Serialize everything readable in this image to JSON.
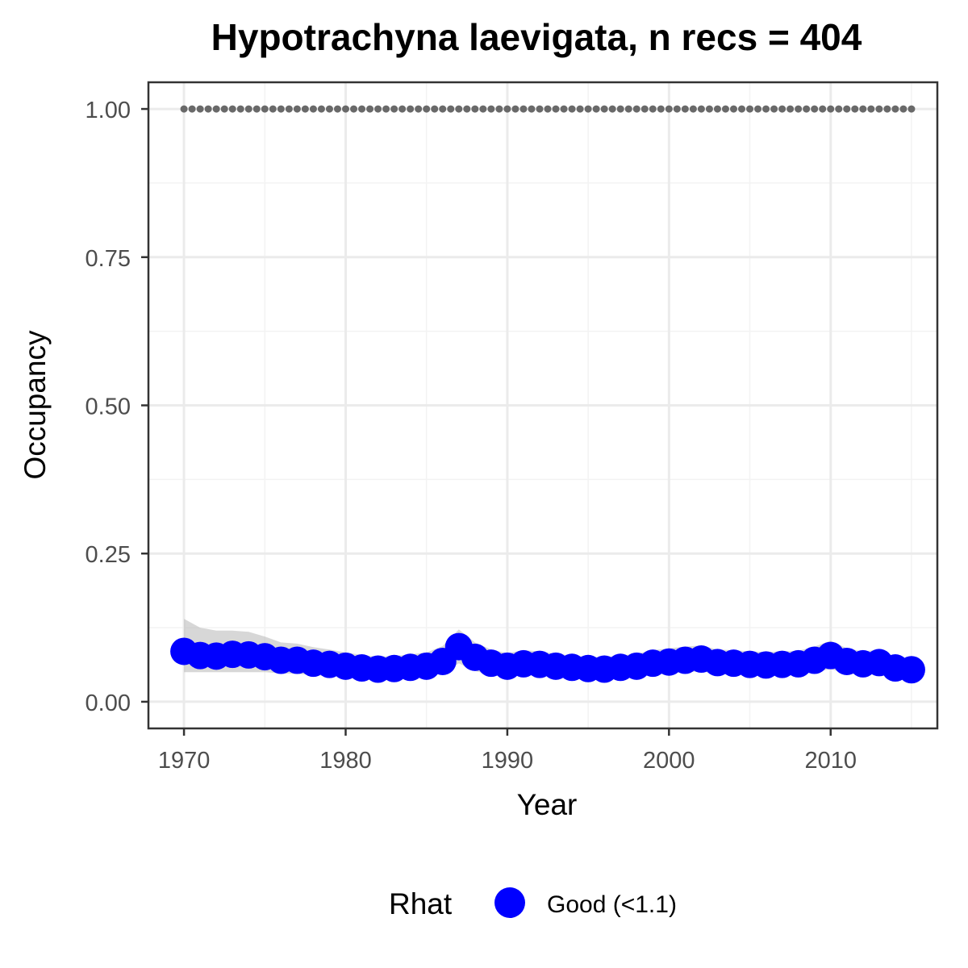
{
  "chart_data": {
    "type": "line",
    "title": "Hypotrachyna laevigata, n recs = 404",
    "xlabel": "Year",
    "ylabel": "Occupancy",
    "xlim": [
      1967.8,
      2016.6
    ],
    "ylim": [
      -0.045,
      1.045
    ],
    "x_ticks": [
      1970,
      1980,
      1990,
      2000,
      2010
    ],
    "x_tick_labels": [
      "1970",
      "1980",
      "1990",
      "2000",
      "2010"
    ],
    "x_minor_ticks": [
      1975,
      1985,
      1995,
      2005,
      2015
    ],
    "y_ticks": [
      0,
      0.25,
      0.5,
      0.75,
      1
    ],
    "y_tick_labels": [
      "0.00",
      "0.25",
      "0.50",
      "0.75",
      "1.00"
    ],
    "y_minor_ticks": [
      0.125,
      0.375,
      0.625,
      0.875
    ],
    "grid": true,
    "x": [
      1970,
      1971,
      1972,
      1973,
      1974,
      1975,
      1976,
      1977,
      1978,
      1979,
      1980,
      1981,
      1982,
      1983,
      1984,
      1985,
      1986,
      1987,
      1988,
      1989,
      1990,
      1991,
      1992,
      1993,
      1994,
      1995,
      1996,
      1997,
      1998,
      1999,
      2000,
      2001,
      2002,
      2003,
      2004,
      2005,
      2006,
      2007,
      2008,
      2009,
      2010,
      2011,
      2012,
      2013,
      2014,
      2015
    ],
    "series": [
      {
        "values": [
          0.085,
          0.078,
          0.077,
          0.08,
          0.079,
          0.076,
          0.07,
          0.07,
          0.065,
          0.063,
          0.06,
          0.057,
          0.055,
          0.056,
          0.058,
          0.06,
          0.068,
          0.093,
          0.075,
          0.065,
          0.06,
          0.064,
          0.063,
          0.06,
          0.058,
          0.056,
          0.055,
          0.058,
          0.06,
          0.065,
          0.067,
          0.07,
          0.072,
          0.066,
          0.065,
          0.063,
          0.062,
          0.063,
          0.064,
          0.07,
          0.078,
          0.068,
          0.064,
          0.066,
          0.057,
          0.054
        ],
        "lower": [
          0.05,
          0.05,
          0.05,
          0.05,
          0.05,
          0.05,
          0.048,
          0.047,
          0.045,
          0.043,
          0.042,
          0.04,
          0.039,
          0.04,
          0.041,
          0.043,
          0.048,
          0.065,
          0.052,
          0.045,
          0.043,
          0.045,
          0.044,
          0.042,
          0.041,
          0.04,
          0.04,
          0.042,
          0.043,
          0.046,
          0.048,
          0.05,
          0.051,
          0.047,
          0.046,
          0.045,
          0.045,
          0.045,
          0.046,
          0.05,
          0.055,
          0.048,
          0.046,
          0.047,
          0.041,
          0.039
        ],
        "upper": [
          0.14,
          0.125,
          0.12,
          0.12,
          0.118,
          0.11,
          0.1,
          0.098,
          0.092,
          0.088,
          0.083,
          0.079,
          0.076,
          0.077,
          0.08,
          0.083,
          0.094,
          0.122,
          0.1,
          0.088,
          0.082,
          0.087,
          0.085,
          0.081,
          0.078,
          0.076,
          0.075,
          0.078,
          0.081,
          0.087,
          0.09,
          0.093,
          0.095,
          0.088,
          0.087,
          0.085,
          0.084,
          0.085,
          0.086,
          0.093,
          0.103,
          0.09,
          0.085,
          0.088,
          0.076,
          0.072
        ],
        "color": "#0000ff"
      },
      {
        "values": [
          1,
          1,
          1,
          1,
          1,
          1,
          1,
          1,
          1,
          1,
          1,
          1,
          1,
          1,
          1,
          1,
          1,
          1,
          1,
          1,
          1,
          1,
          1,
          1,
          1,
          1,
          1,
          1,
          1,
          1,
          1,
          1,
          1,
          1,
          1,
          1,
          1,
          1,
          1,
          1,
          1,
          1,
          1,
          1,
          1,
          1
        ],
        "color": "#696969",
        "style": "dotted"
      }
    ],
    "ribbon_color": "#bdbdbd",
    "legend": {
      "title": "Rhat",
      "entries": [
        {
          "label": "Good (<1.1)",
          "color": "#0000ff"
        }
      ],
      "position": "bottom"
    },
    "colors": {
      "background": "#ffffff",
      "panel_border": "#333333",
      "grid_major": "#ebebeb",
      "grid_minor": "#f3f3f3",
      "axis_tick": "#333333"
    }
  }
}
